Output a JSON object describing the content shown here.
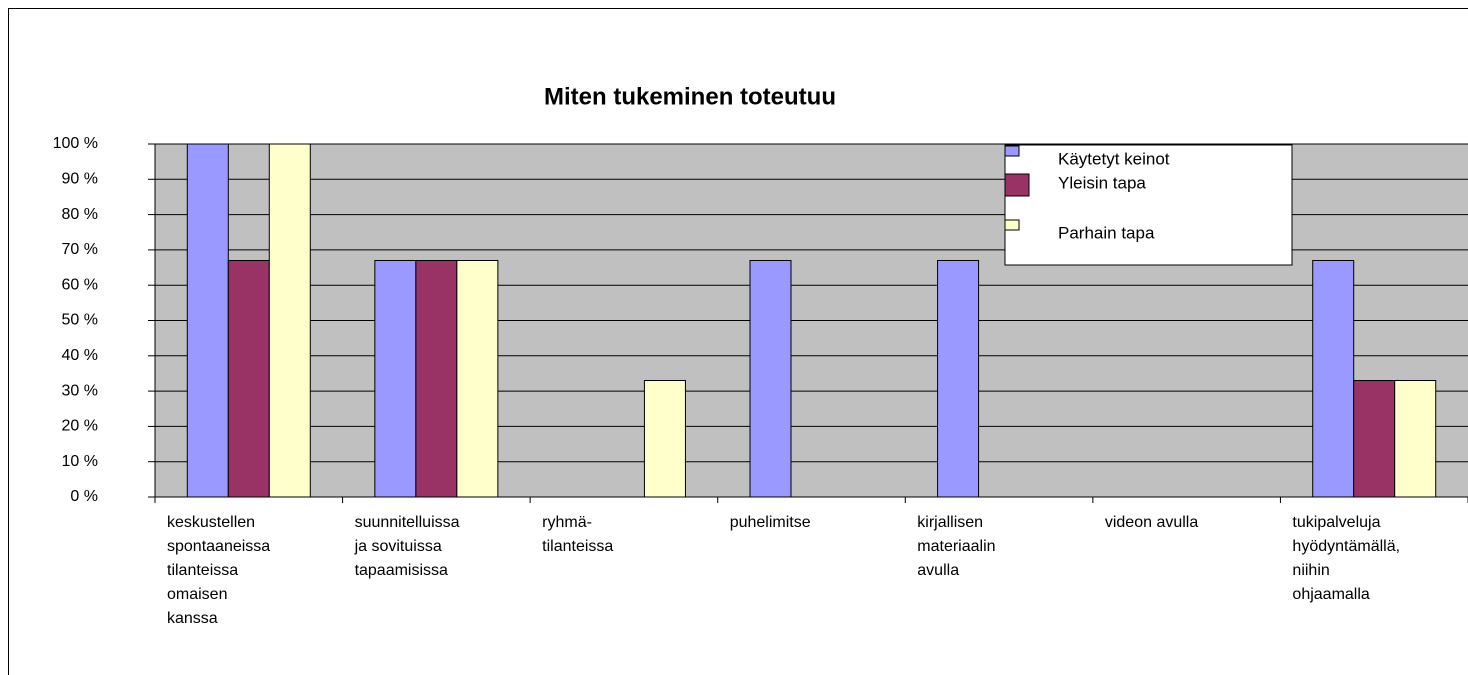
{
  "chart_data": {
    "type": "bar",
    "title": "Miten tukeminen toteutuu",
    "categories": [
      [
        "keskustellen",
        "spontaaneissa",
        "tilanteissa",
        "omaisen",
        "kanssa"
      ],
      [
        "suunnitelluissa",
        "ja sovituissa",
        "tapaamisissa"
      ],
      [
        "ryhmä-",
        "tilanteissa"
      ],
      [
        "puhelimitse"
      ],
      [
        "kirjallisen",
        "materiaalin",
        "avulla"
      ],
      [
        "videon avulla"
      ],
      [
        "tukipalveluja",
        "hyödyntämällä,",
        "niihin",
        "ohjaamalla"
      ]
    ],
    "series": [
      {
        "name": "Käytetyt keinot",
        "color": "#9999ff",
        "values": [
          100,
          67,
          0,
          67,
          67,
          0,
          67
        ]
      },
      {
        "name": "Yleisin tapa",
        "color": "#993366",
        "values": [
          67,
          67,
          0,
          0,
          0,
          0,
          33
        ]
      },
      {
        "name": "Parhain tapa",
        "color": "#ffffcc",
        "values": [
          100,
          67,
          33,
          0,
          0,
          0,
          33
        ]
      }
    ],
    "ylim": [
      0,
      100
    ],
    "yticks": [
      {
        "value": 0,
        "label": "0 %"
      },
      {
        "value": 10,
        "label": "10 %"
      },
      {
        "value": 20,
        "label": "20 %"
      },
      {
        "value": 30,
        "label": "30 %"
      },
      {
        "value": 40,
        "label": "40 %"
      },
      {
        "value": 50,
        "label": "50 %"
      },
      {
        "value": 60,
        "label": "60 %"
      },
      {
        "value": 70,
        "label": "70 %"
      },
      {
        "value": 80,
        "label": "80 %"
      },
      {
        "value": 90,
        "label": "90 %"
      },
      {
        "value": 100,
        "label": "100 %"
      }
    ],
    "grid": true,
    "legend": "upper right"
  }
}
